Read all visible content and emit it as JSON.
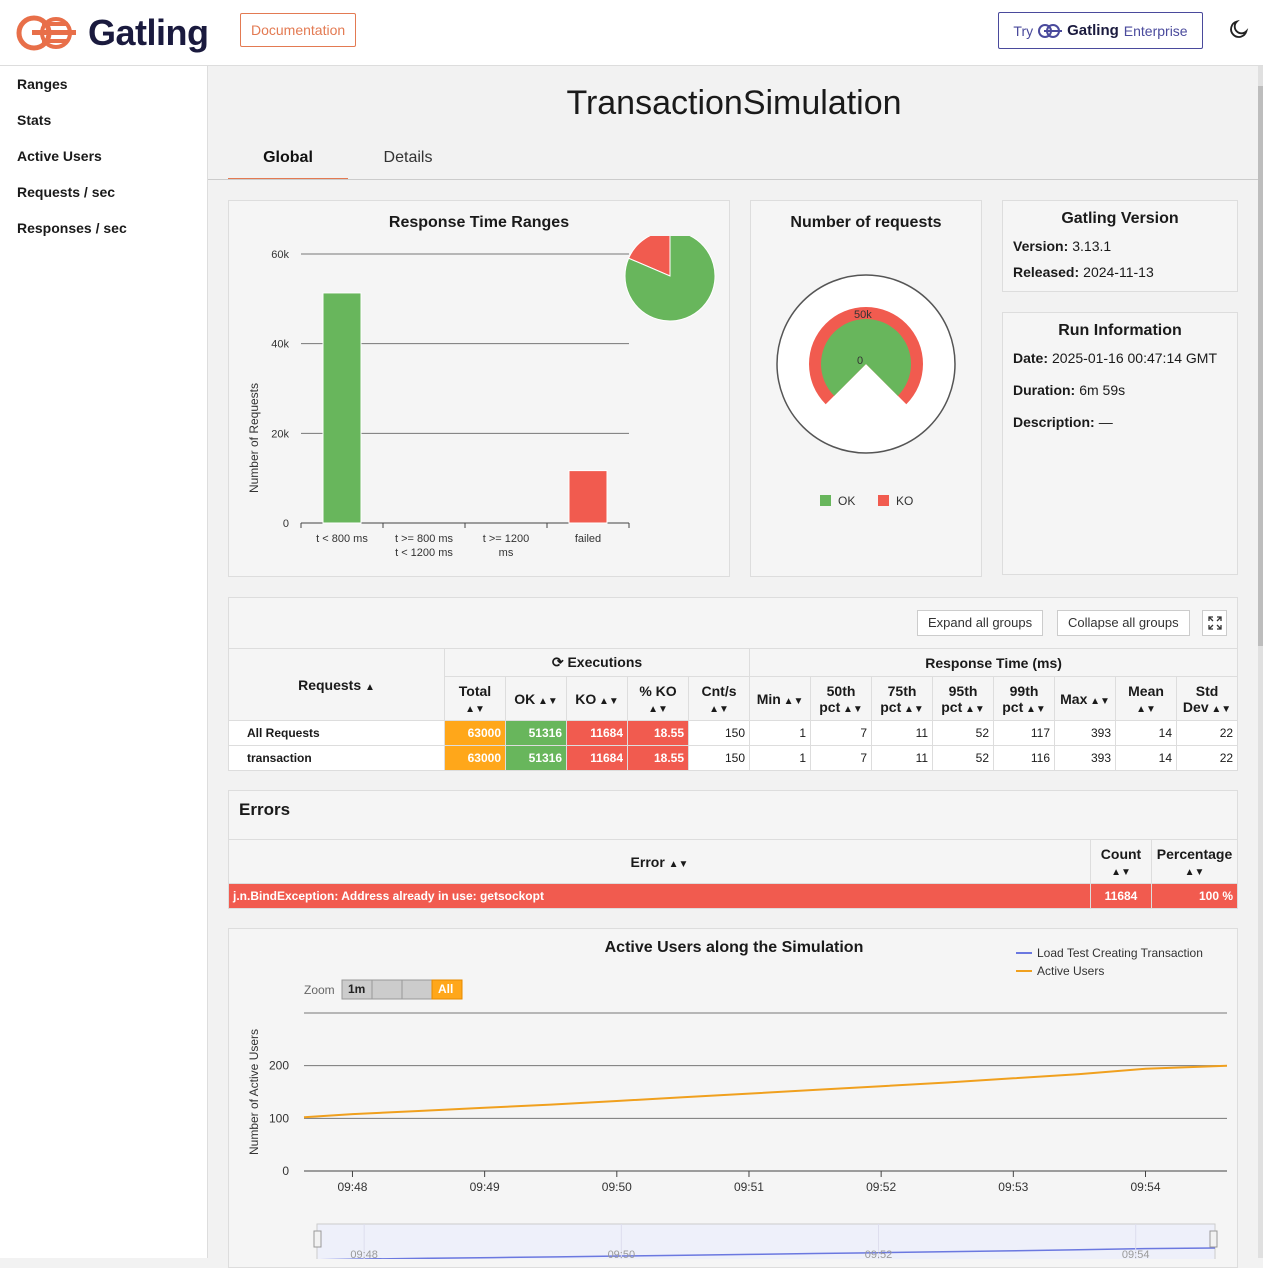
{
  "header": {
    "brand": "Gatling",
    "doc_label": "Documentation",
    "try_label": "Try",
    "enterprise_brand": "Gatling",
    "enterprise_word": "Enterprise"
  },
  "sidebar": {
    "items": [
      {
        "label": "Ranges"
      },
      {
        "label": "Stats"
      },
      {
        "label": "Active Users"
      },
      {
        "label": "Requests / sec"
      },
      {
        "label": "Responses / sec"
      }
    ]
  },
  "page": {
    "title": "TransactionSimulation",
    "tabs": [
      "Global",
      "Details"
    ]
  },
  "ranges_chart": {
    "title": "Response Time Ranges",
    "ylabel": "Number of Requests",
    "yticks": [
      "0",
      "20k",
      "40k",
      "60k"
    ],
    "xticks": [
      [
        "t < 800 ms"
      ],
      [
        "t >= 800 ms",
        "t < 1200 ms"
      ],
      [
        "t >= 1200",
        "ms"
      ],
      [
        "failed"
      ]
    ]
  },
  "requests_chart": {
    "title": "Number of requests",
    "inner_label_top": "50k",
    "inner_label_mid": "0",
    "legend_ok": "OK",
    "legend_ko": "KO"
  },
  "chart_data": [
    {
      "type": "bar",
      "title": "Response Time Ranges",
      "ylabel": "Number of Requests",
      "categories": [
        "t < 800 ms",
        "t >= 800 ms t < 1200 ms",
        "t >= 1200 ms",
        "failed"
      ],
      "values": [
        51316,
        0,
        0,
        11684
      ],
      "colors": [
        "#68b65c",
        "#ffa71a",
        "#ffa71a",
        "#f15b4f"
      ],
      "ylim": [
        0,
        60000
      ],
      "grid": true
    },
    {
      "type": "pie",
      "categories": [
        "OK",
        "KO"
      ],
      "values": [
        51316,
        11684
      ],
      "colors": [
        "#68b65c",
        "#f15b4f"
      ]
    },
    {
      "type": "line",
      "title": "Active Users along the Simulation",
      "ylabel": "Number of Active Users",
      "x": [
        "09:47:38",
        "09:48",
        "09:48:30",
        "09:49",
        "09:49:30",
        "09:50",
        "09:50:30",
        "09:51",
        "09:51:30",
        "09:52",
        "09:52:30",
        "09:53",
        "09:53:30",
        "09:54",
        "09:54:37"
      ],
      "xticks": [
        "09:48",
        "09:49",
        "09:50",
        "09:51",
        "09:52",
        "09:53",
        "09:54"
      ],
      "yticks": [
        "0",
        "100",
        "200"
      ],
      "ylim": [
        0,
        300
      ],
      "series": [
        {
          "name": "Active Users",
          "color": "#f0a01e",
          "values": [
            102,
            108,
            114,
            120,
            126,
            133,
            140,
            147,
            154,
            161,
            168,
            176,
            184,
            194,
            200
          ]
        }
      ],
      "legend": [
        "Load Test Creating Transaction",
        "Active Users"
      ],
      "legend_colors": [
        "#6b78e0",
        "#f0a01e"
      ]
    }
  ],
  "gatling_version": {
    "title": "Gatling Version",
    "version_label": "Version:",
    "version": "3.13.1",
    "released_label": "Released:",
    "released": "2024-11-13"
  },
  "run_info": {
    "title": "Run Information",
    "date_label": "Date:",
    "date": "2025-01-16 00:47:14 GMT",
    "duration_label": "Duration:",
    "duration": "6m 59s",
    "description_label": "Description:",
    "description": "—"
  },
  "stats": {
    "expand_label": "Expand all groups",
    "collapse_label": "Collapse all groups",
    "requests_header": "Requests",
    "executions_header": "Executions",
    "response_header": "Response Time (ms)",
    "columns": [
      "Total",
      "OK",
      "KO",
      "% KO",
      "Cnt/s",
      "Min",
      "50th pct",
      "75th pct",
      "95th pct",
      "99th pct",
      "Max",
      "Mean",
      "Std Dev"
    ],
    "rows": [
      {
        "name": "All Requests",
        "cells": [
          "63000",
          "51316",
          "11684",
          "18.55",
          "150",
          "1",
          "7",
          "11",
          "52",
          "117",
          "393",
          "14",
          "22"
        ]
      },
      {
        "name": "transaction",
        "cells": [
          "63000",
          "51316",
          "11684",
          "18.55",
          "150",
          "1",
          "7",
          "11",
          "52",
          "116",
          "393",
          "14",
          "22"
        ]
      }
    ]
  },
  "errors": {
    "title": "Errors",
    "col_error": "Error",
    "col_count": "Count",
    "col_percentage": "Percentage",
    "rows": [
      {
        "error": "j.n.BindException: Address already in use: getsockopt",
        "count": "11684",
        "percentage": "100 %"
      }
    ]
  },
  "users_chart": {
    "title": "Active Users along the Simulation",
    "zoom_label": "Zoom",
    "zoom_options": [
      "1m",
      "",
      "",
      "All"
    ],
    "ylabel": "Number of Active Users",
    "legend_1": "Load Test Creating Transaction",
    "legend_2": "Active Users",
    "navigator_ticks": [
      "09:48",
      "09:50",
      "09:52",
      "09:54"
    ]
  }
}
